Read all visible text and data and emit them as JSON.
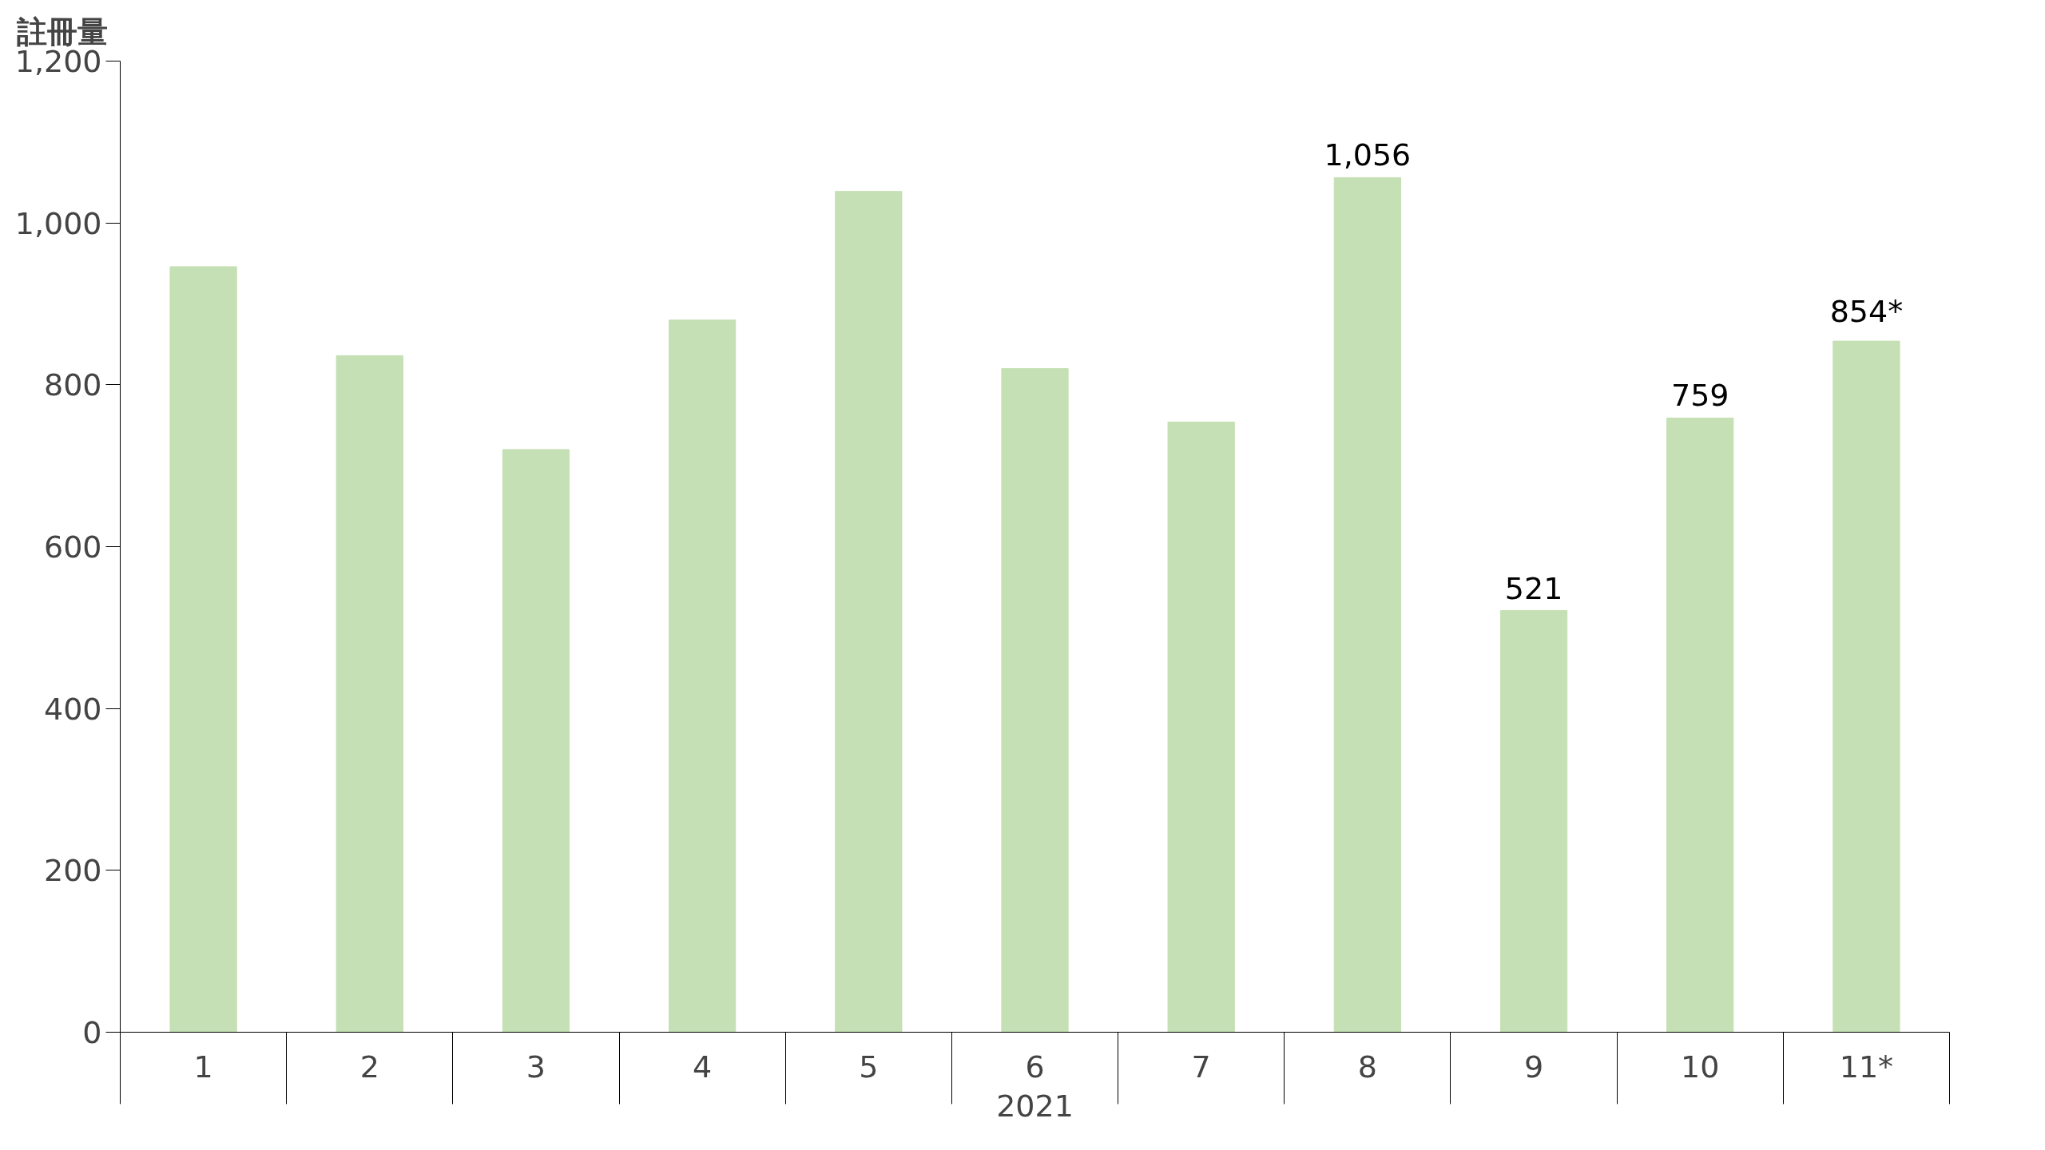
{
  "chart_data": {
    "type": "bar",
    "ylabel": "註冊量",
    "xlabel": "2021",
    "categories": [
      "1",
      "2",
      "3",
      "4",
      "5",
      "6",
      "7",
      "8",
      "9",
      "10",
      "11*"
    ],
    "values": [
      946,
      836,
      720,
      880,
      1039,
      820,
      754,
      1056,
      521,
      759,
      854
    ],
    "value_labels": [
      null,
      null,
      null,
      null,
      null,
      null,
      null,
      "1,056",
      "521",
      "759",
      "854*"
    ],
    "color": "#c5e0b4",
    "ylim": [
      0,
      1200
    ],
    "yticks": [
      0,
      {
        "value": 200,
        "label": "200"
      },
      {
        "value": 400,
        "label": "400"
      },
      {
        "value": 600,
        "label": "600"
      },
      {
        "value": 800,
        "label": "800"
      },
      {
        "value": 1000,
        "label": "1,000"
      },
      {
        "value": 1200,
        "label": "1,200"
      }
    ],
    "grid": false
  }
}
